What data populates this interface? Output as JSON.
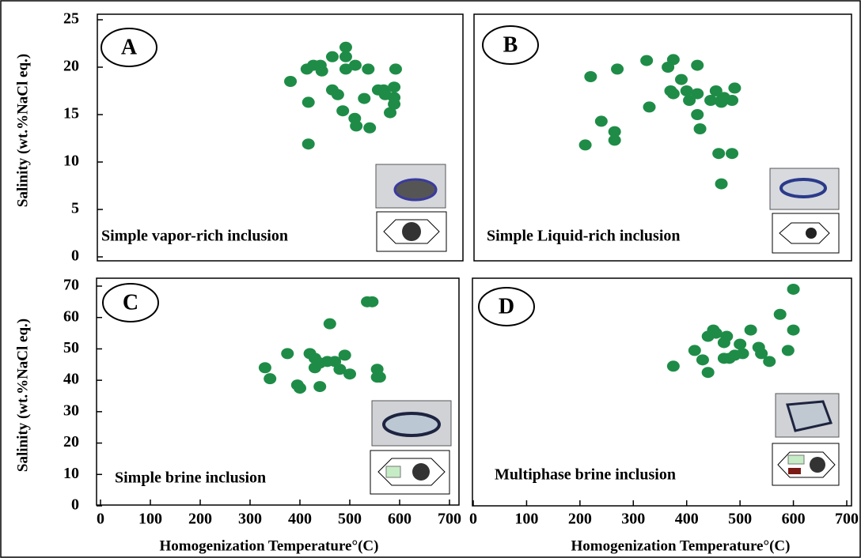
{
  "chart_data": [
    {
      "type": "scatter",
      "panel_label": "A",
      "caption": "Simple vapor-rich inclusion",
      "y_label": "Salinity (wt.%NaCl eq.)",
      "color": "#1e8c47",
      "xlim": [
        0,
        700
      ],
      "ylim": [
        0,
        25
      ],
      "yticks": [
        0,
        5,
        10,
        15,
        20,
        25
      ],
      "x": [
        381,
        414,
        427,
        441,
        444,
        465,
        492,
        492,
        492,
        511,
        537,
        592,
        465,
        476,
        486,
        510,
        513,
        540,
        529,
        557,
        568,
        571,
        589,
        589,
        589,
        581,
        417,
        417
      ],
      "values": [
        18.5,
        19.8,
        20.2,
        20.2,
        19.6,
        21.1,
        22.1,
        21.1,
        19.8,
        20.2,
        19.8,
        19.8,
        17.6,
        17.1,
        15.4,
        14.6,
        13.8,
        13.6,
        16.7,
        17.6,
        17.6,
        17.1,
        17.9,
        16.8,
        16.1,
        15.2,
        16.3,
        11.9
      ]
    },
    {
      "type": "scatter",
      "panel_label": "B",
      "caption": "Simple Liquid-rich inclusion",
      "color": "#1e8c47",
      "xlim": [
        0,
        700
      ],
      "ylim": [
        0,
        25
      ],
      "x": [
        220,
        270,
        210,
        240,
        265,
        265,
        325,
        330,
        375,
        365,
        370,
        375,
        390,
        400,
        420,
        405,
        420,
        420,
        425,
        445,
        455,
        465,
        465,
        470,
        490,
        485,
        460,
        485,
        465
      ],
      "values": [
        19,
        19.8,
        11.8,
        14.3,
        12.3,
        13.2,
        20.7,
        15.8,
        20.8,
        20,
        17.5,
        17.2,
        18.7,
        17.5,
        20.2,
        16.5,
        17.2,
        15,
        13.5,
        16.5,
        17.5,
        16.3,
        16.5,
        16.8,
        17.8,
        16.5,
        10.9,
        10.9,
        7.7
      ]
    },
    {
      "type": "scatter",
      "panel_label": "C",
      "caption": "Simple brine inclusion",
      "y_label": "Salinity (wt.%NaCl eq.)",
      "x_label": "Homogenization Temperature°(C)",
      "color": "#1e8c47",
      "xlim": [
        0,
        700
      ],
      "ylim": [
        0,
        70
      ],
      "xticks": [
        0,
        100,
        200,
        300,
        400,
        500,
        600,
        700
      ],
      "yticks": [
        0,
        10,
        20,
        30,
        40,
        50,
        60,
        70
      ],
      "x": [
        330,
        340,
        375,
        395,
        400,
        420,
        430,
        430,
        440,
        440,
        455,
        460,
        470,
        480,
        490,
        500,
        535,
        545,
        555,
        555,
        560
      ],
      "values": [
        44,
        40.5,
        48.5,
        38.5,
        37.5,
        48.5,
        47,
        44,
        45.5,
        38,
        46,
        58,
        46,
        43.5,
        48,
        42,
        65,
        65,
        43.5,
        41,
        41
      ]
    },
    {
      "type": "scatter",
      "panel_label": "D",
      "caption": "Multiphase brine inclusion",
      "x_label": "Homogenization Temperature°(C)",
      "color": "#1e8c47",
      "xlim": [
        0,
        700
      ],
      "ylim": [
        0,
        70
      ],
      "xticks": [
        0,
        100,
        200,
        300,
        400,
        500,
        600,
        700
      ],
      "x": [
        375,
        415,
        430,
        440,
        440,
        450,
        455,
        470,
        475,
        470,
        480,
        490,
        500,
        505,
        520,
        535,
        540,
        555,
        575,
        590,
        600,
        600
      ],
      "values": [
        44.5,
        49.5,
        46.5,
        42.5,
        54,
        56,
        55,
        52,
        54,
        47,
        47,
        48,
        51.5,
        48.5,
        56,
        50.5,
        48.5,
        46,
        61,
        49.5,
        56,
        69
      ]
    }
  ]
}
